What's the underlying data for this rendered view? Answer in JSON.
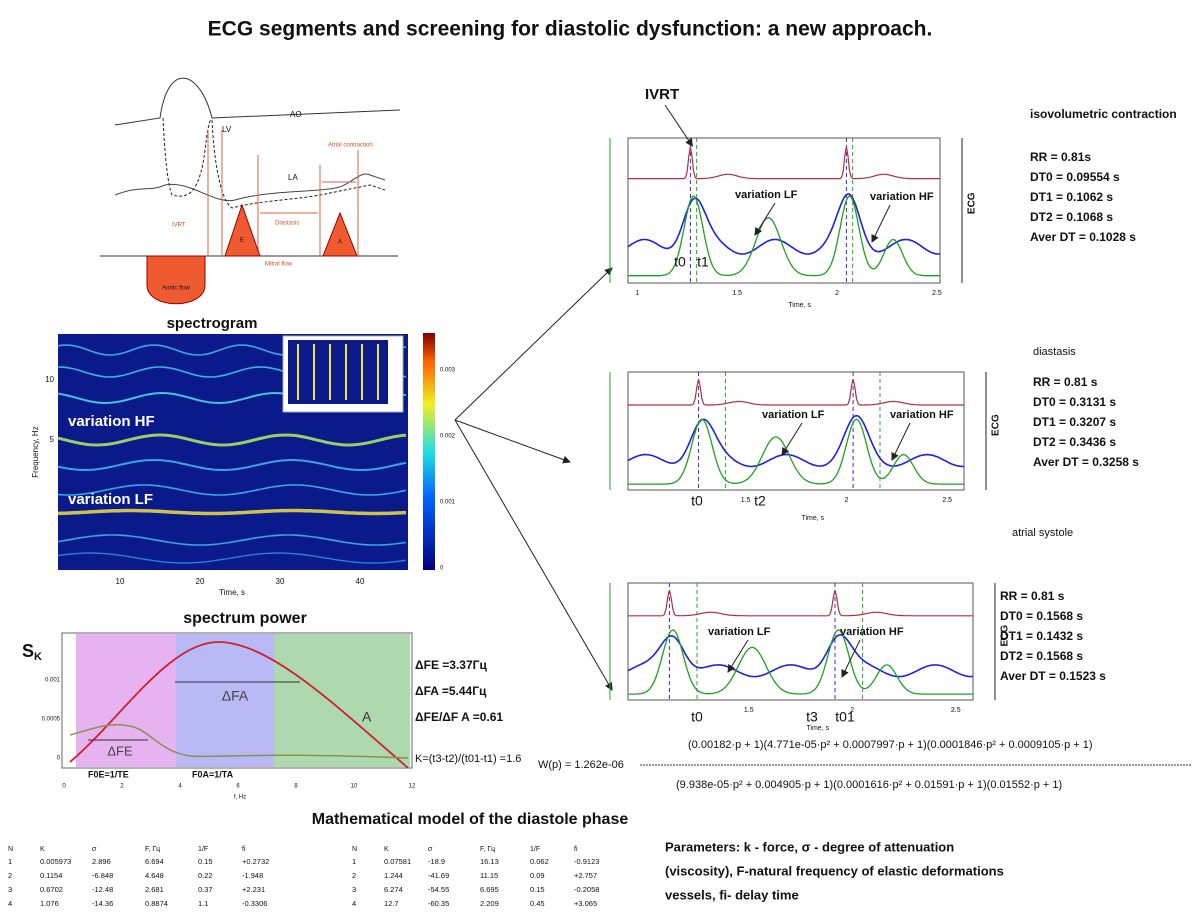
{
  "title": "ECG segments and screening for diastolic dysfunction: a new approach.",
  "heart_diagram": {
    "ao": "AO",
    "lv": "LV",
    "la": "LA",
    "atrial_contraction": "Atrial contraction",
    "ivrt": "IVRT",
    "diastasis": "Diastasis",
    "mitral_flow": "Mitral flow",
    "aortic_flow": "Aortic flow",
    "e": "E",
    "a": "A"
  },
  "spectrogram": {
    "title": "spectrogram",
    "hf": "variation HF",
    "lf": "variation LF",
    "x_label": "Time, s",
    "y_label": "Frequency, Hz",
    "x_ticks": [
      "10",
      "20",
      "30",
      "40"
    ],
    "y_ticks": [
      "10",
      "5"
    ],
    "colorbar_ticks": [
      "0.003",
      "0.002",
      "0.001",
      "0"
    ]
  },
  "spectrum_power": {
    "title": "spectrum power",
    "y_symbol": "S",
    "y_subscript": "K",
    "x_label": "f, Hz",
    "x_ticks": [
      "0",
      "2",
      "4",
      "6",
      "8",
      "10",
      "12"
    ],
    "y_ticks": [
      "0.001",
      "0.0005",
      "0"
    ],
    "band_e": "F0E=1/TE",
    "band_a": "F0A=1/TA",
    "delta_e_curve": "ΔFE",
    "delta_a_curve": "ΔFA",
    "curve_a": "A",
    "delta_lines": [
      "ΔFE =3.37Гц",
      "ΔFA =5.44Гц",
      "ΔFE/ΔF A =0.61"
    ],
    "k": "K=(t3-t2)/(t01-t1) =1.6"
  },
  "transfer_function": {
    "numerator": "(0.00182·p + 1)(4.771e-05·p² + 0.0007997·p + 1)(0.0001846·p² + 0.0009105·p + 1)",
    "lhs": "W(p) = 1.262e-06",
    "denominator": "(9.938e-05·p² + 0.004905·p + 1)(0.0001616·p² + 0.01591·p + 1)(0.01552·p + 1)"
  },
  "ecg_panels": [
    {
      "title": "isovolumetric contraction",
      "params": [
        "RR = 0.81s",
        "DT0 = 0.09554 s",
        "DT1 = 0.1062 s",
        "DT2 = 0.1068 s",
        "Aver DT = 0.1028 s"
      ],
      "marker": "IVRT",
      "lf": "variation LF",
      "hf": "variation HF",
      "times": [
        "t0",
        "t1"
      ],
      "x_ticks": [
        "1",
        "1.5",
        "2",
        "2.5"
      ],
      "x_label": "Time, s",
      "ecg": "ECG"
    },
    {
      "title": "diastasis",
      "params": [
        "RR = 0.81 s",
        "DT0 = 0.3131 s",
        "DT1 = 0.3207 s",
        "DT2 = 0.3436 s",
        "Aver DT = 0.3258 s"
      ],
      "lf": "variation LF",
      "hf": "variation HF",
      "times": [
        "t0",
        "t2"
      ],
      "x_ticks": [
        "1.5",
        "2",
        "2.5"
      ],
      "x_label": "Time, s",
      "ecg": "ECG"
    },
    {
      "title": "atrial systole",
      "params": [
        "RR = 0.81 s",
        "DT0 = 0.1568 s",
        "DT1 = 0.1432 s",
        "DT2 = 0.1568 s",
        "Aver DT = 0.1523 s"
      ],
      "lf": "variation LF",
      "hf": "variation HF",
      "times": [
        "t0",
        "t3",
        "t01"
      ],
      "x_ticks": [
        "1.5",
        "2",
        "2.5"
      ],
      "x_label": "Time, s",
      "ecg": "ECG"
    }
  ],
  "model": {
    "title": "Mathematical model of the diastole phase",
    "tables": [
      {
        "header": [
          "N",
          "K",
          "σ",
          "F, Гц",
          "1/F",
          "fi"
        ],
        "rows": [
          [
            "1",
            "0.005973",
            "2.896",
            "6.694",
            "0.15",
            "+0.2732"
          ],
          [
            "2",
            "0.1154",
            "-6.848",
            "4.648",
            "0.22",
            "-1.948"
          ],
          [
            "3",
            "0.6702",
            "-12.48",
            "2.681",
            "0.37",
            "+2.231"
          ],
          [
            "4",
            "1.076",
            "-14.36",
            "0.8874",
            "1.1",
            "-0.3306"
          ]
        ]
      },
      {
        "header": [
          "N",
          "K",
          "σ",
          "F, Гц",
          "1/F",
          "fi"
        ],
        "rows": [
          [
            "1",
            "0.07581",
            "-18.9",
            "16.13",
            "0.062",
            "-0.9123"
          ],
          [
            "2",
            "1.244",
            "-41.69",
            "11.15",
            "0.09",
            "+2.757"
          ],
          [
            "3",
            "6.274",
            "-54.55",
            "6.695",
            "0.15",
            "-0.2058"
          ],
          [
            "4",
            "12.7",
            "-60.35",
            "2.209",
            "0.45",
            "+3.065"
          ]
        ]
      }
    ],
    "parameters": [
      "Parameters: k - force, σ - degree of attenuation",
      "(viscosity), F-natural frequency of elastic deformations",
      "vessels, fi- delay time"
    ]
  }
}
